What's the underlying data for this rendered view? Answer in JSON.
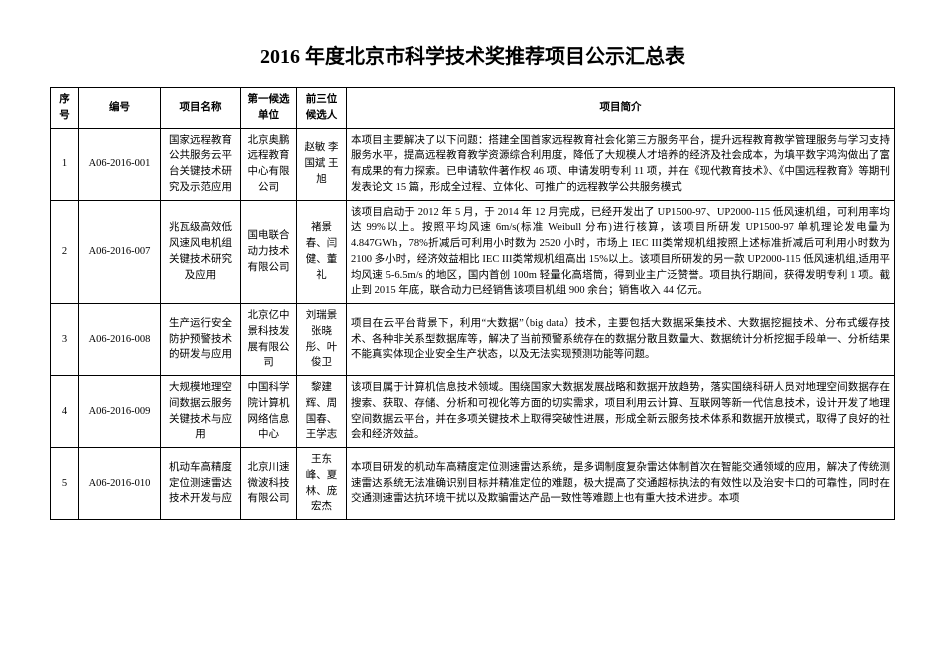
{
  "title": "2016 年度北京市科学技术奖推荐项目公示汇总表",
  "columns": [
    "序号",
    "编号",
    "项目名称",
    "第一候选单位",
    "前三位候选人",
    "项目简介"
  ],
  "rows": [
    {
      "seq": "1",
      "num": "A06-2016-001",
      "name": "国家远程教育公共服务云平台关键技术研究及示范应用",
      "org": "北京奥鹏远程教育中心有限公司",
      "ppl": "赵敏\n李国斌\n王旭",
      "desc": "本项目主要解决了以下问题：搭建全国首家远程教育社会化第三方服务平台，提升远程教育教学管理服务与学习支持服务水平，提高远程教育教学资源综合利用度，降低了大规模人才培养的经济及社会成本，为填平数字鸿沟做出了富有成果的有力探索。已申请软件著作权 46 项、申请发明专利 11 项，并在《现代教育技术》、《中国远程教育》等期刊发表论文 15 篇，形成全过程、立体化、可推广的远程教学公共服务模式"
    },
    {
      "seq": "2",
      "num": "A06-2016-007",
      "name": "兆瓦级高效低风速风电机组关键技术研究及应用",
      "org": "国电联合动力技术有限公司",
      "ppl": "褚景春、闫健、董礼",
      "desc": "该项目启动于 2012 年 5 月，于 2014 年 12 月完成，已经开发出了 UP1500-97、UP2000-115 低风速机组，可利用率均达 99%以上。按照平均风速 6m/s(标准 Weibull 分布)进行核算，该项目所研发 UP1500-97 单机理论发电量为 4.847GWh，78%折减后可利用小时数为 2520 小时，市场上 IEC  III类常规机组按照上述标准折减后可利用小时数为 2100 多小时，经济效益相比 IEC  III类常规机组高出 15%以上。该项目所研发的另一款 UP2000-115 低风速机组,适用平均风速 5-6.5m/s 的地区，国内首创 100m 轻量化高塔筒，得到业主广泛赞誉。项目执行期间，获得发明专利 1 项。截止到 2015 年底，联合动力已经销售该项目机组 900 余台；销售收入 44 亿元。"
    },
    {
      "seq": "3",
      "num": "A06-2016-008",
      "name": "生产运行安全防护预警技术的研发与应用",
      "org": "北京亿中景科技发展有限公司",
      "ppl": "刘瑞景\n张晓彤、叶俊卫",
      "desc": "项目在云平台背景下，利用“大数据”（big data）技术，主要包括大数据采集技术、大数据挖掘技术、分布式缓存技术、各种非关系型数据库等，解决了当前预警系统存在的数据分散且数量大、数据统计分析挖掘手段单一、分析结果不能真实体现企业安全生产状态，以及无法实现预测功能等问题。"
    },
    {
      "seq": "4",
      "num": "A06-2016-009",
      "name": "大规模地理空间数据云服务关键技术与应用",
      "org": "中国科学院计算机网络信息中心",
      "ppl": "黎建辉、周国春、王学志",
      "desc": "该项目属于计算机信息技术领域。围绕国家大数据发展战略和数据开放趋势，落实国绕科研人员对地理空间数据存在搜索、获取、存储、分析和可视化等方面的切实需求，项目利用云计算、互联网等新一代信息技术，设计开发了地理空间数据云平台，并在多项关键技术上取得突破性进展，形成全新云服务技术体系和数据开放模式，取得了良好的社会和经济效益。"
    },
    {
      "seq": "5",
      "num": "A06-2016-010",
      "name": "机动车高精度定位测速雷达技术开发与应",
      "org": "北京川速微波科技有限公司",
      "ppl": "王东峰、夏林、庞宏杰",
      "desc": "本项目研发的机动车高精度定位测速雷达系统，是多调制度复杂雷达体制首次在智能交通领域的应用，解决了传统测速雷达系统无法准确识别目标并精准定位的难题，极大提高了交通超标执法的有效性以及治安卡口的可靠性，同时在交通测速雷达抗环境干扰以及欺骗雷达产品一致性等难题上也有重大技术进步。本项"
    }
  ]
}
